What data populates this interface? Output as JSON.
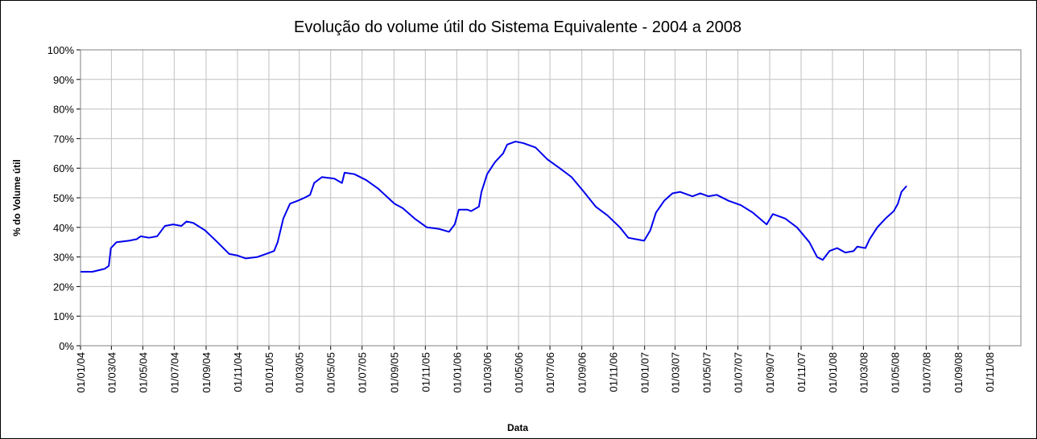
{
  "chart_data": {
    "type": "line",
    "title": "Evolução do volume útil do Sistema Equivalente - 2004 a 2008",
    "xlabel": "Data",
    "ylabel": "% do Volume útil",
    "color": "#0000ee",
    "grid": true,
    "x": [
      "2004-01-01",
      "2004-01-24",
      "2004-02-17",
      "2004-02-25",
      "2004-02-29",
      "2004-03-11",
      "2004-04-04",
      "2004-04-19",
      "2004-04-27",
      "2004-05-13",
      "2004-05-29",
      "2004-06-13",
      "2004-06-29",
      "2004-07-15",
      "2004-07-25",
      "2004-08-07",
      "2004-08-30",
      "2004-09-23",
      "2004-10-16",
      "2004-11-01",
      "2004-11-17",
      "2004-12-10",
      "2004-12-26",
      "2005-01-11",
      "2005-01-18",
      "2005-01-29",
      "2005-02-11",
      "2005-02-26",
      "2005-03-11",
      "2005-03-22",
      "2005-03-30",
      "2005-04-14",
      "2005-05-08",
      "2005-05-23",
      "2005-05-28",
      "2005-06-16",
      "2005-07-09",
      "2005-08-02",
      "2005-09-02",
      "2005-09-18",
      "2005-10-11",
      "2005-11-04",
      "2005-11-27",
      "2005-12-17",
      "2005-12-28",
      "2006-01-05",
      "2006-01-21",
      "2006-01-29",
      "2006-02-13",
      "2006-02-18",
      "2006-03-01",
      "2006-03-16",
      "2006-04-01",
      "2006-04-09",
      "2006-04-25",
      "2006-05-10",
      "2006-06-03",
      "2006-06-26",
      "2006-07-20",
      "2006-08-12",
      "2006-09-05",
      "2006-09-28",
      "2006-10-21",
      "2006-11-14",
      "2006-11-30",
      "2006-12-15",
      "2006-12-31",
      "2007-01-12",
      "2007-01-23",
      "2007-02-08",
      "2007-02-24",
      "2007-03-11",
      "2007-04-04",
      "2007-04-19",
      "2007-05-05",
      "2007-05-21",
      "2007-06-13",
      "2007-07-07",
      "2007-07-30",
      "2007-08-26",
      "2007-09-07",
      "2007-10-01",
      "2007-10-24",
      "2007-11-17",
      "2007-12-02",
      "2007-12-13",
      "2007-12-26",
      "2008-01-10",
      "2008-01-26",
      "2008-02-11",
      "2008-02-18",
      "2008-03-05",
      "2008-03-13",
      "2008-03-28",
      "2008-04-13",
      "2008-04-29",
      "2008-05-07",
      "2008-05-14",
      "2008-05-24"
    ],
    "values": [
      25,
      25,
      26,
      27,
      33,
      35,
      35.5,
      36,
      37,
      36.5,
      37,
      40.5,
      41,
      40.5,
      42,
      41.5,
      39,
      35,
      31,
      30.5,
      29.5,
      30,
      31,
      32,
      35,
      43,
      48,
      49,
      50,
      51,
      55,
      57,
      56.5,
      55,
      58.5,
      58,
      56,
      53,
      48,
      46.5,
      43,
      40,
      39.5,
      38.5,
      41,
      46,
      46,
      45.5,
      47,
      52,
      58,
      62,
      65,
      68,
      69,
      68.5,
      67,
      63,
      60,
      57,
      52,
      47,
      44,
      40,
      36.5,
      36,
      35.5,
      39,
      45,
      49,
      51.5,
      52,
      50.5,
      51.5,
      50.5,
      51,
      49,
      47.5,
      45,
      41,
      44.5,
      43,
      40,
      35,
      30,
      29,
      32,
      33,
      31.5,
      32,
      33.5,
      33,
      36,
      40,
      43,
      45.5,
      48,
      52,
      54
    ],
    "xlim": [
      "2004-01-01",
      "2009-01-01"
    ],
    "xticks": [
      {
        "value": "2004-01-01",
        "label": "01/01/04"
      },
      {
        "value": "2004-03-01",
        "label": "01/03/04"
      },
      {
        "value": "2004-05-01",
        "label": "01/05/04"
      },
      {
        "value": "2004-07-01",
        "label": "01/07/04"
      },
      {
        "value": "2004-09-01",
        "label": "01/09/04"
      },
      {
        "value": "2004-11-01",
        "label": "01/11/04"
      },
      {
        "value": "2005-01-01",
        "label": "01/01/05"
      },
      {
        "value": "2005-03-01",
        "label": "01/03/05"
      },
      {
        "value": "2005-05-01",
        "label": "01/05/05"
      },
      {
        "value": "2005-07-01",
        "label": "01/07/05"
      },
      {
        "value": "2005-09-01",
        "label": "01/09/05"
      },
      {
        "value": "2005-11-01",
        "label": "01/11/05"
      },
      {
        "value": "2006-01-01",
        "label": "01/01/06"
      },
      {
        "value": "2006-03-01",
        "label": "01/03/06"
      },
      {
        "value": "2006-05-01",
        "label": "01/05/06"
      },
      {
        "value": "2006-07-01",
        "label": "01/07/06"
      },
      {
        "value": "2006-09-01",
        "label": "01/09/06"
      },
      {
        "value": "2006-11-01",
        "label": "01/11/06"
      },
      {
        "value": "2007-01-01",
        "label": "01/01/07"
      },
      {
        "value": "2007-03-01",
        "label": "01/03/07"
      },
      {
        "value": "2007-05-01",
        "label": "01/05/07"
      },
      {
        "value": "2007-07-01",
        "label": "01/07/07"
      },
      {
        "value": "2007-09-01",
        "label": "01/09/07"
      },
      {
        "value": "2007-11-01",
        "label": "01/11/07"
      },
      {
        "value": "2008-01-01",
        "label": "01/01/08"
      },
      {
        "value": "2008-03-01",
        "label": "01/03/08"
      },
      {
        "value": "2008-05-01",
        "label": "01/05/08"
      },
      {
        "value": "2008-07-01",
        "label": "01/07/08"
      },
      {
        "value": "2008-09-01",
        "label": "01/09/08"
      },
      {
        "value": "2008-11-01",
        "label": "01/11/08"
      }
    ],
    "ylim": [
      0,
      100
    ],
    "yticks": [
      {
        "value": 0,
        "label": "0%"
      },
      {
        "value": 10,
        "label": "10%"
      },
      {
        "value": 20,
        "label": "20%"
      },
      {
        "value": 30,
        "label": "30%"
      },
      {
        "value": 40,
        "label": "40%"
      },
      {
        "value": 50,
        "label": "50%"
      },
      {
        "value": 60,
        "label": "60%"
      },
      {
        "value": 70,
        "label": "70%"
      },
      {
        "value": 80,
        "label": "80%"
      },
      {
        "value": 90,
        "label": "90%"
      },
      {
        "value": 100,
        "label": "100%"
      }
    ]
  }
}
